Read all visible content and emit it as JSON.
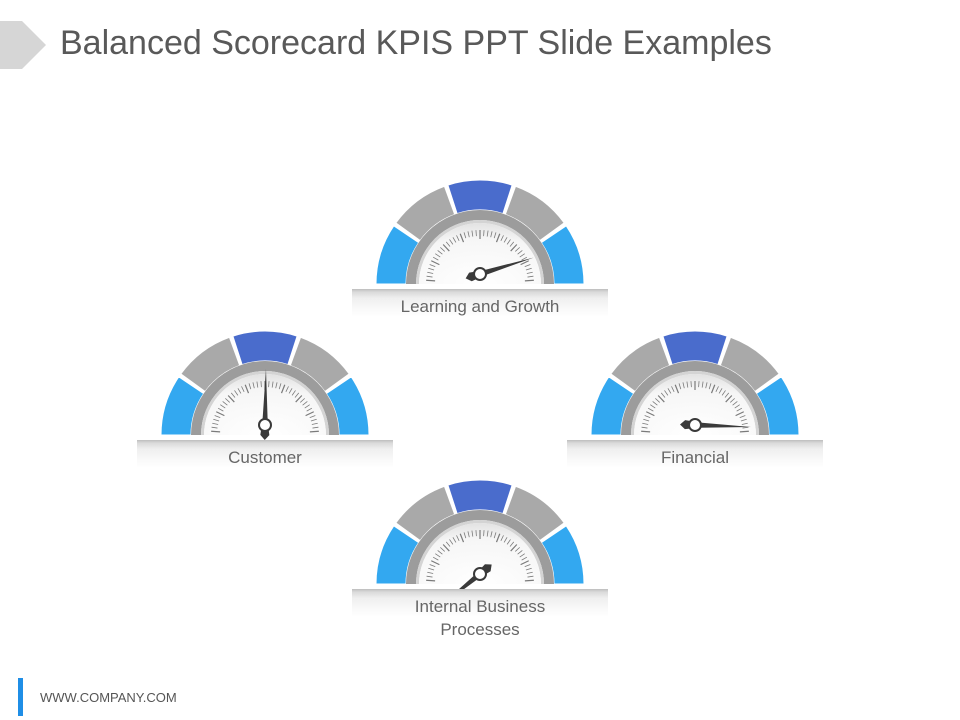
{
  "slide": {
    "title": "Balanced Scorecard KPIS PPT Slide Examples",
    "footer": "WWW.COMPANY.COM"
  },
  "colors": {
    "accent_blue": "#1f8ee6",
    "segment_bright_blue": "#33a8f0",
    "segment_dark_blue": "#4a6ccc",
    "segment_gray": "#a9a9a9",
    "title_text": "#595959"
  },
  "gauges": [
    {
      "id": "learning-growth",
      "label": "Learning and Growth",
      "needle_angle_deg": 17
    },
    {
      "id": "customer",
      "label": "Customer",
      "needle_angle_deg": 89
    },
    {
      "id": "financial",
      "label": "Financial",
      "needle_angle_deg": -2
    },
    {
      "id": "internal-business",
      "label": "Internal Business\nProcesses",
      "needle_angle_deg": -141
    }
  ]
}
